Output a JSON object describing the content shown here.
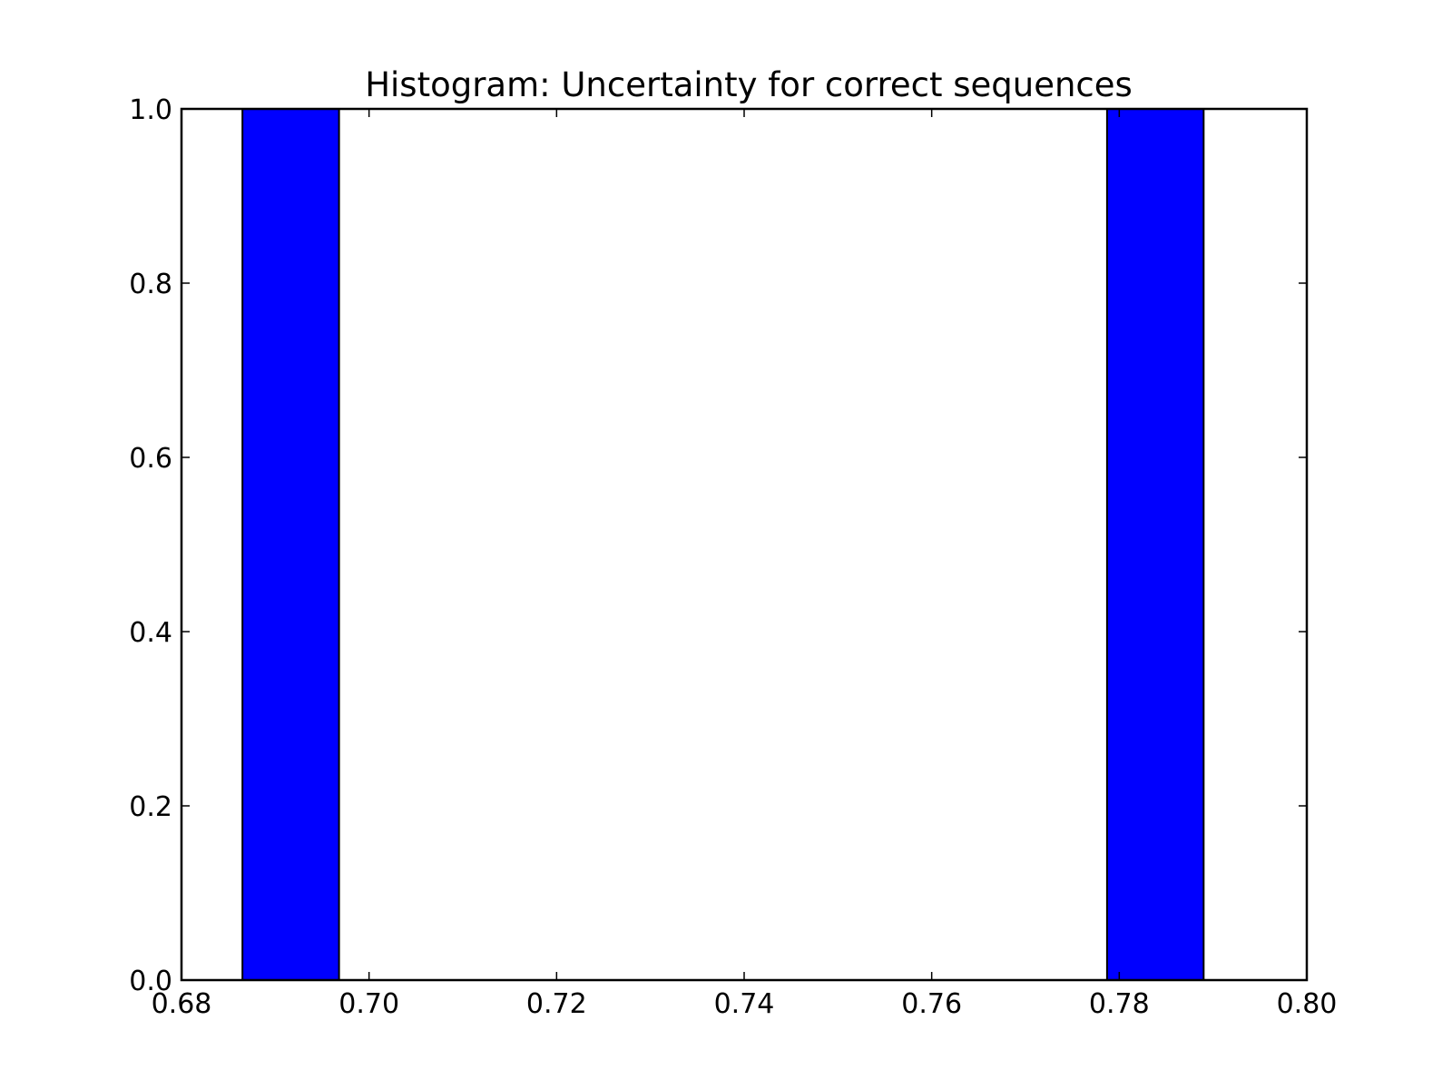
{
  "chart_data": {
    "type": "bar",
    "subtype": "histogram",
    "title": "Histogram: Uncertainty for correct sequences",
    "xlabel": "",
    "ylabel": "",
    "xlim": [
      0.68,
      0.8
    ],
    "ylim": [
      0.0,
      1.0
    ],
    "grid": false,
    "x_ticks": [
      "0.68",
      "0.70",
      "0.72",
      "0.74",
      "0.76",
      "0.78",
      "0.80"
    ],
    "y_ticks": [
      "0.0",
      "0.2",
      "0.4",
      "0.6",
      "0.8",
      "1.0"
    ],
    "bins": [
      {
        "start": 0.6865,
        "end": 0.6968,
        "count": 1
      },
      {
        "start": 0.7787,
        "end": 0.789,
        "count": 1
      }
    ],
    "bar_color": "#0000ff",
    "edge_color": "#000000"
  }
}
